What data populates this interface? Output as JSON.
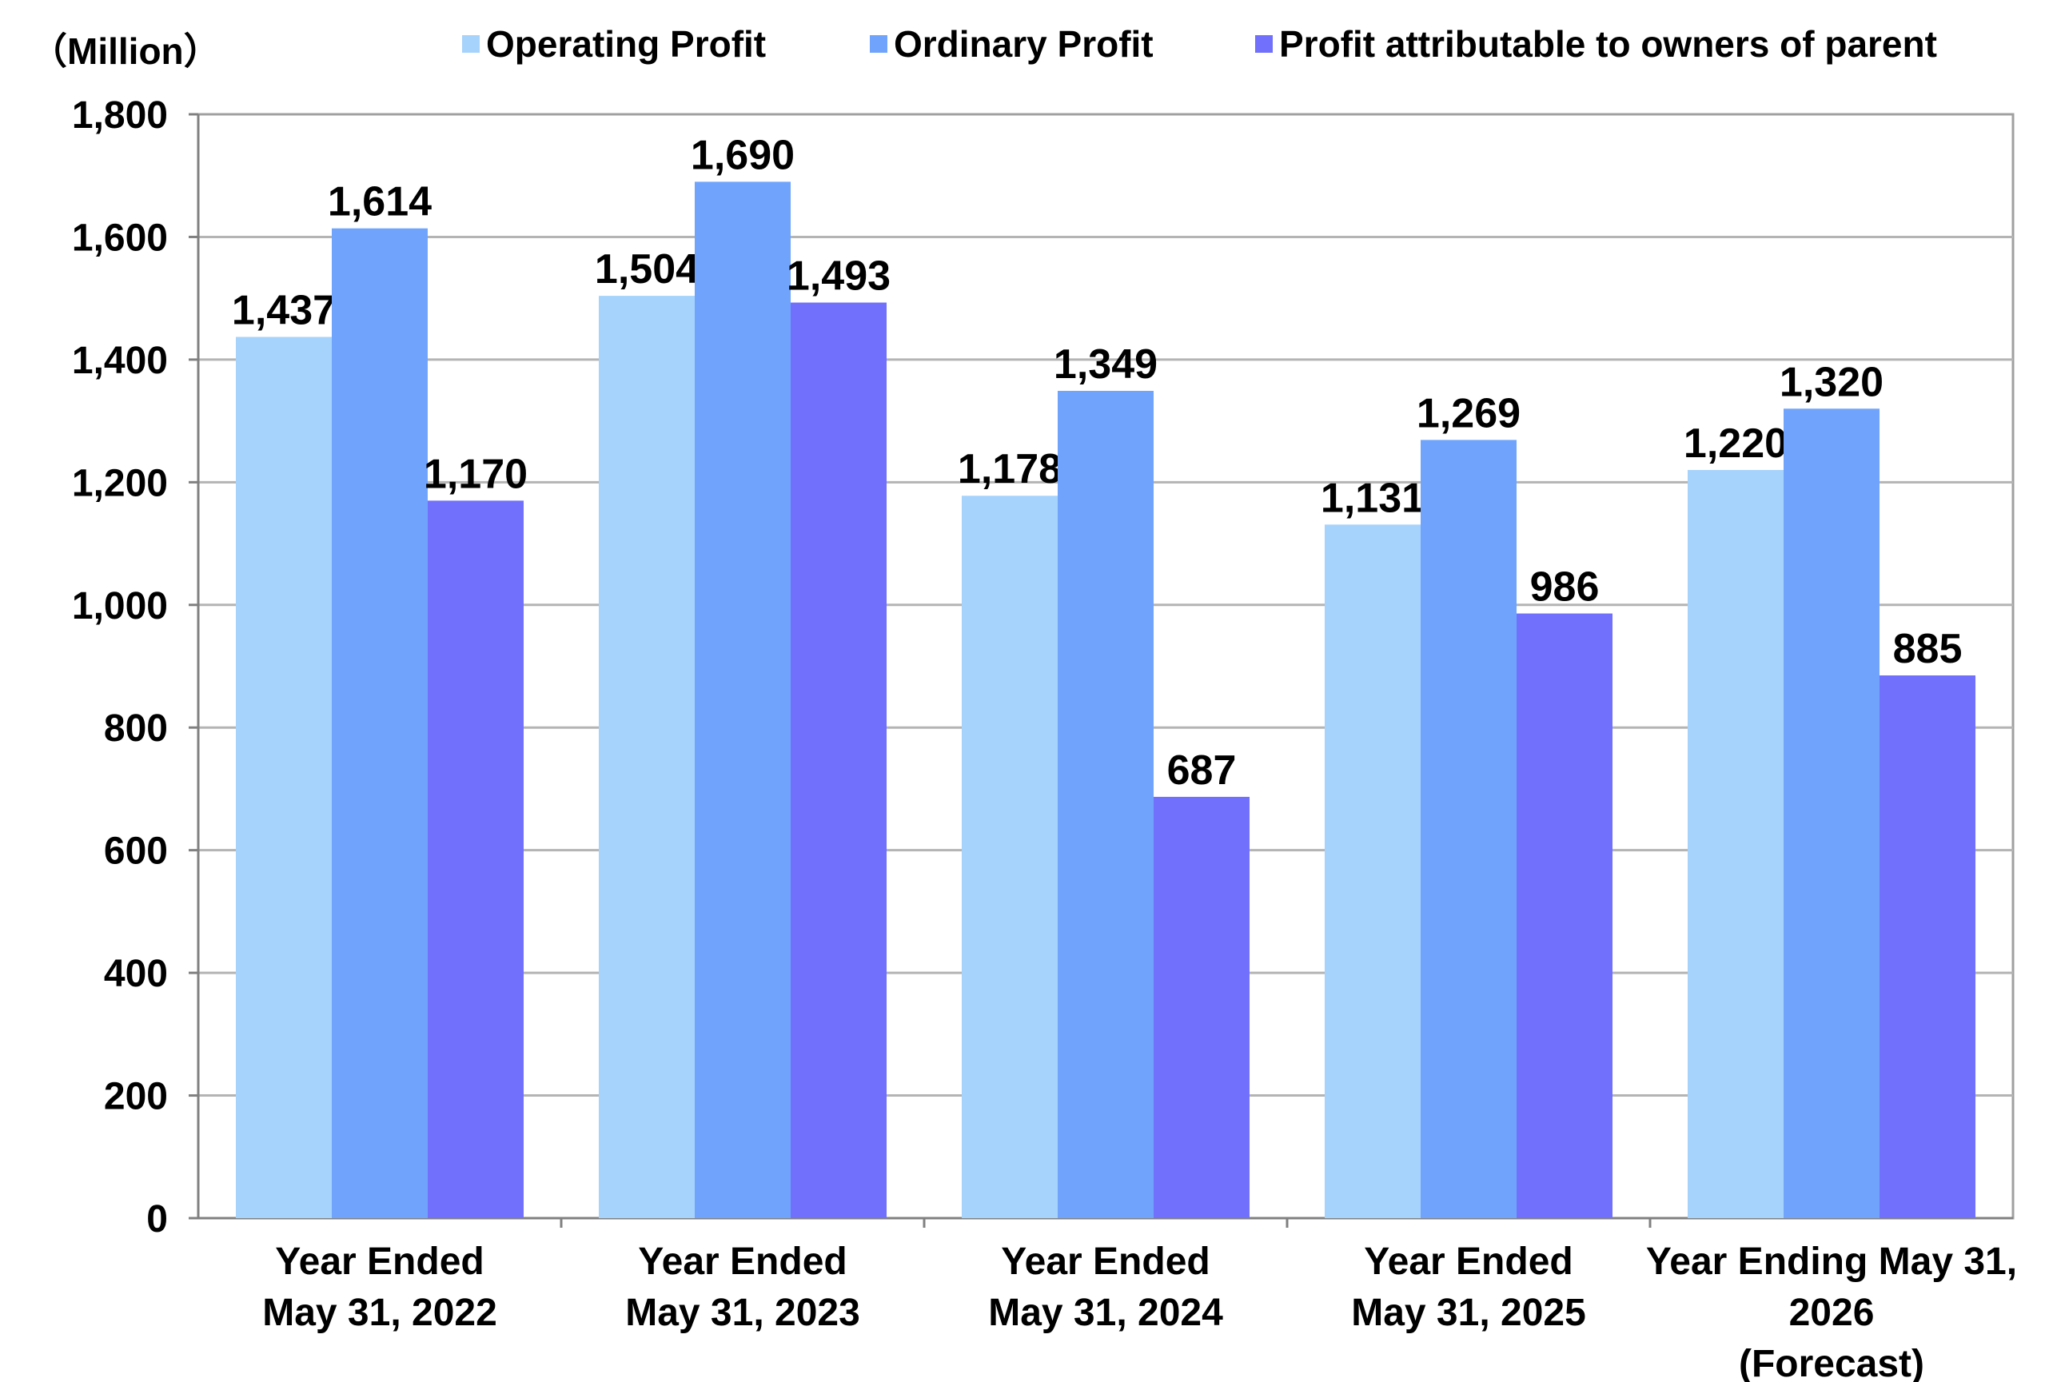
{
  "chart_data": {
    "type": "bar",
    "unit_label": "（Million）",
    "categories": [
      [
        "Year Ended",
        "May 31, 2022"
      ],
      [
        "Year Ended",
        "May 31, 2023"
      ],
      [
        "Year Ended",
        "May 31, 2024"
      ],
      [
        "Year Ended",
        "May 31, 2025"
      ],
      [
        "Year Ending May 31,",
        "2026",
        "(Forecast)"
      ]
    ],
    "series": [
      {
        "name": "Operating Profit",
        "color": "#a6d3fc",
        "values": [
          1437,
          1504,
          1178,
          1131,
          1220
        ]
      },
      {
        "name": "Ordinary Profit",
        "color": "#70a4fc",
        "values": [
          1614,
          1690,
          1349,
          1269,
          1320
        ]
      },
      {
        "name": "Profit attributable to owners of parent",
        "color": "#7070fc",
        "values": [
          1170,
          1493,
          687,
          986,
          885
        ]
      }
    ],
    "data_labels": [
      [
        "1,437",
        "1,504",
        "1,178",
        "1,131",
        "1,220"
      ],
      [
        "1,614",
        "1,690",
        "1,349",
        "1,269",
        "1,320"
      ],
      [
        "1,170",
        "1,493",
        "687",
        "986",
        "885"
      ]
    ],
    "y_ticks": [
      "0",
      "200",
      "400",
      "600",
      "800",
      "1,000",
      "1,200",
      "1,400",
      "1,600",
      "1,800"
    ],
    "ylim": [
      0,
      1800
    ],
    "grid": true,
    "legend_position": "top"
  }
}
